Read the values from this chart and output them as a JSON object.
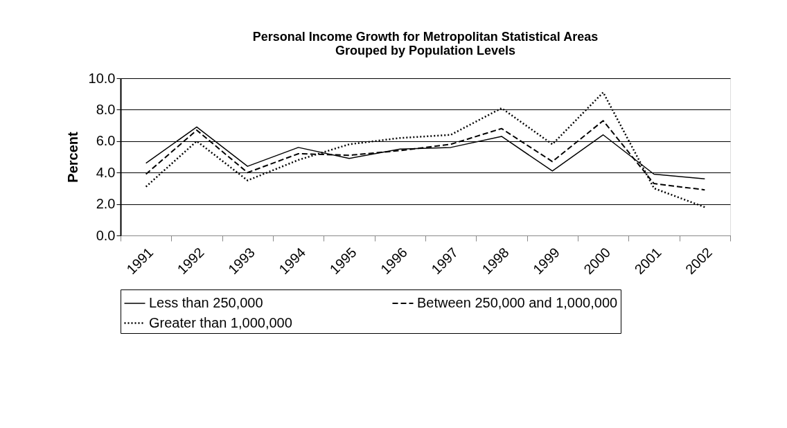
{
  "chart_data": {
    "type": "line",
    "title": "Personal Income Growth for Metropolitan Statistical Areas\nGrouped by Population Levels",
    "ylabel": "Percent",
    "categories": [
      "1991",
      "1992",
      "1993",
      "1994",
      "1995",
      "1996",
      "1997",
      "1998",
      "1999",
      "2000",
      "2001",
      "2002"
    ],
    "series": [
      {
        "name": "Less than 250,000",
        "color": "#000000",
        "line_style": "solid",
        "values": [
          4.6,
          6.9,
          4.4,
          5.6,
          4.9,
          5.5,
          5.6,
          6.3,
          4.1,
          6.4,
          3.9,
          3.6
        ]
      },
      {
        "name": "Between 250,000 and 1,000,000",
        "color": "#000000",
        "line_style": "dashed",
        "values": [
          3.9,
          6.7,
          4.0,
          5.2,
          5.1,
          5.4,
          5.8,
          6.8,
          4.7,
          7.3,
          3.3,
          2.9
        ]
      },
      {
        "name": "Greater than 1,000,000",
        "color": "#000000",
        "line_style": "dotted",
        "values": [
          3.1,
          6.0,
          3.5,
          4.8,
          5.8,
          6.2,
          6.4,
          8.1,
          5.8,
          9.1,
          3.0,
          1.8
        ]
      }
    ],
    "ylim": [
      0,
      10
    ],
    "yticks": [
      {
        "value": 0,
        "label": "0.0"
      },
      {
        "value": 2,
        "label": "2.0"
      },
      {
        "value": 4,
        "label": "4.0"
      },
      {
        "value": 6,
        "label": "6.0"
      },
      {
        "value": 8,
        "label": "8.0"
      },
      {
        "value": 10,
        "label": "10.0"
      }
    ],
    "grid": "y",
    "legend": "bottom",
    "marker": "none"
  }
}
